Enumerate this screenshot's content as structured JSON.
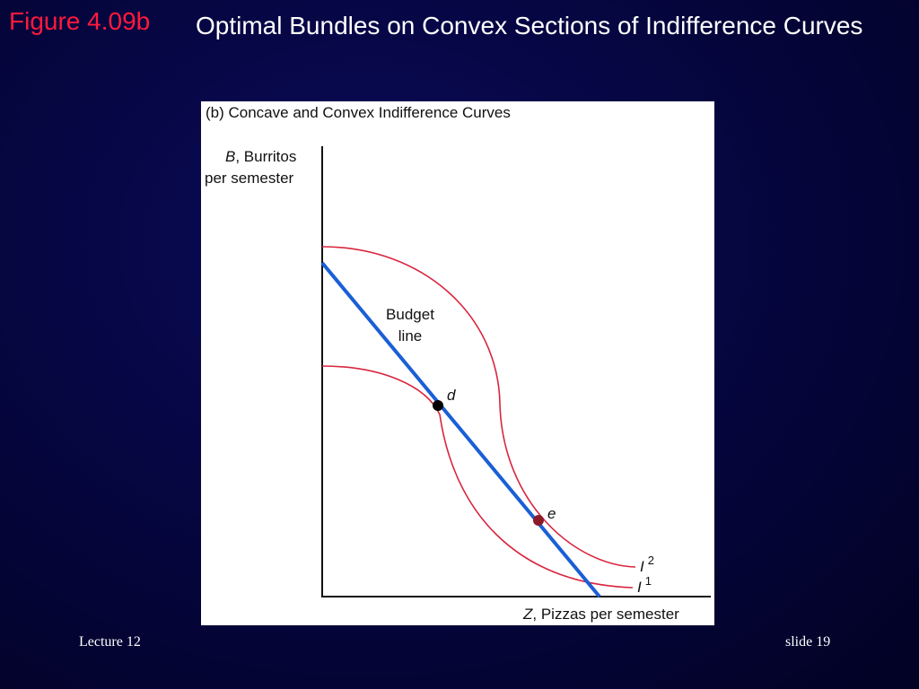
{
  "header": {
    "figure_label": "Figure 4.09b",
    "title": "Optimal Bundles on Convex Sections of Indifference Curves"
  },
  "figure": {
    "panel_title": "(b) Concave and Convex Indifference Curves",
    "y_axis": {
      "variable": "B",
      "line1": ", Burritos",
      "line2": "per semester"
    },
    "x_axis": {
      "variable": "Z",
      "text": ", Pizzas per semester"
    },
    "budget_line_label": {
      "line1": "Budget",
      "line2": "line"
    },
    "points": [
      {
        "label": "d"
      },
      {
        "label": "e"
      }
    ],
    "curves": [
      {
        "name": "I",
        "superscript": "2"
      },
      {
        "name": "I",
        "superscript": "1"
      }
    ]
  },
  "footer": {
    "left": "Lecture 12",
    "right": "slide 19"
  }
}
